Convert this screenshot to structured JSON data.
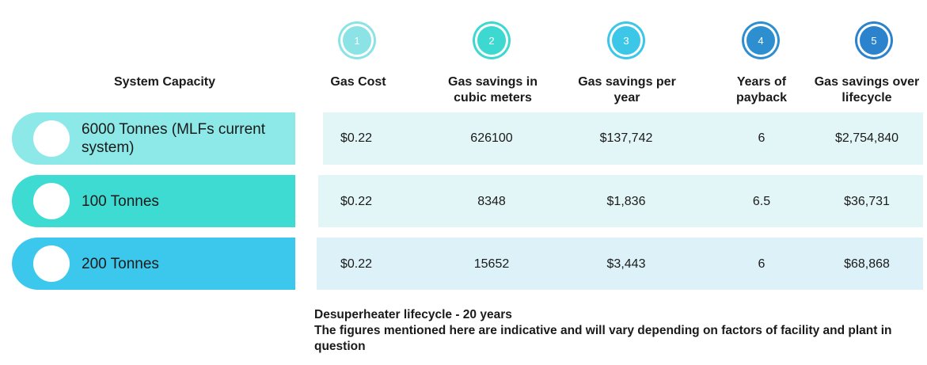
{
  "step_numbers": [
    "1",
    "2",
    "3",
    "4",
    "5"
  ],
  "step_colors": [
    "#8be3e6",
    "#3dd9d0",
    "#3cc6e8",
    "#2d8fd0",
    "#2a83cc"
  ],
  "headers": {
    "system_capacity": "System Capacity",
    "gas_cost": "Gas Cost",
    "gas_savings_cubic": "Gas savings in cubic meters",
    "gas_savings_year": "Gas savings per year",
    "years_payback": "Years of payback",
    "gas_savings_lifecycle": "Gas savings over lifecycle"
  },
  "rows": [
    {
      "capacity": "6000 Tonnes (MLFs current system)",
      "gas_cost": "$0.22",
      "cubic_meters": "626100",
      "per_year": "$137,742",
      "payback": "6",
      "lifecycle": "$2,754,840",
      "pill_color": "#8de8e8",
      "band_color": "#e3f6f7"
    },
    {
      "capacity": "100 Tonnes",
      "gas_cost": "$0.22",
      "cubic_meters": "8348",
      "per_year": "$1,836",
      "payback": "6.5",
      "lifecycle": "$36,731",
      "pill_color": "#3ddbd2",
      "band_color": "#e3f6f7"
    },
    {
      "capacity": "200 Tonnes",
      "gas_cost": "$0.22",
      "cubic_meters": "15652",
      "per_year": "$3,443",
      "payback": "6",
      "lifecycle": "$68,868",
      "pill_color": "#3cc8ec",
      "band_color": "#dcf2f8"
    }
  ],
  "notes": {
    "line1": "Desuperheater lifecycle - 20 years",
    "line2": "The figures mentioned here are indicative and will vary depending on factors of facility and plant in question"
  }
}
